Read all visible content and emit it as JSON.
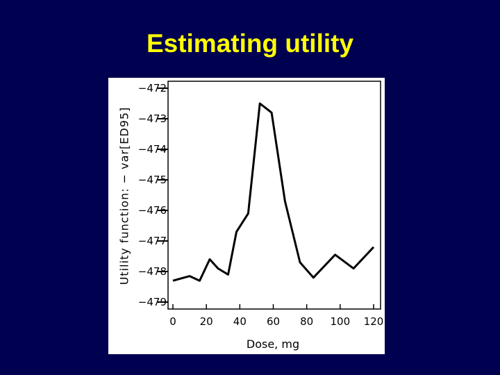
{
  "slide": {
    "title": "Estimating utility",
    "background_color": "#000050",
    "title_color": "#ffff00"
  },
  "chart_data": {
    "type": "line",
    "title": "",
    "xlabel": "Dose, mg",
    "ylabel": "Utility function: − var[ED95]",
    "xlim": [
      0,
      120
    ],
    "ylim": [
      -479,
      -472
    ],
    "xticks": [
      0,
      20,
      40,
      60,
      80,
      100,
      120
    ],
    "yticks": [
      -472,
      -473,
      -474,
      -475,
      -476,
      -477,
      -478,
      -479
    ],
    "xtick_labels": [
      "0",
      "20",
      "40",
      "60",
      "80",
      "100",
      "120"
    ],
    "ytick_labels": [
      "−472",
      "−473",
      "−474",
      "−475",
      "−476",
      "−477",
      "−478",
      "−479"
    ],
    "grid": false,
    "line_color": "#000000",
    "series": [
      {
        "x": [
          0,
          10,
          16,
          22,
          27,
          33,
          38,
          45,
          52,
          59,
          67,
          76,
          84,
          97,
          108,
          120
        ],
        "y": [
          -478.3,
          -478.15,
          -478.3,
          -477.6,
          -477.9,
          -478.1,
          -476.7,
          -476.1,
          -472.5,
          -472.8,
          -475.7,
          -477.7,
          -478.2,
          -477.45,
          -477.9,
          -477.2
        ]
      }
    ]
  }
}
